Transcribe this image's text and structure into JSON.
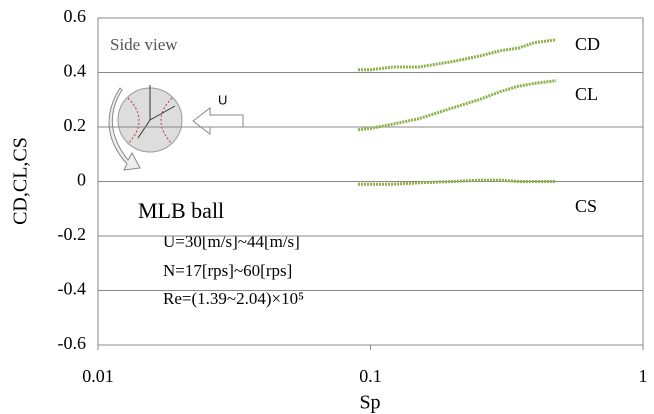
{
  "chart_data": {
    "type": "line",
    "x_label": "Sp",
    "y_label": "CD,CL,CS",
    "x": [
      0.09,
      0.1,
      0.12,
      0.15,
      0.2,
      0.25,
      0.3,
      0.35,
      0.4,
      0.48
    ],
    "series": [
      {
        "name": "CD",
        "color": "#8db04a",
        "values": [
          0.41,
          0.41,
          0.42,
          0.42,
          0.44,
          0.46,
          0.48,
          0.49,
          0.51,
          0.52
        ]
      },
      {
        "name": "CL",
        "color": "#8db04a",
        "values": [
          0.19,
          0.195,
          0.21,
          0.23,
          0.27,
          0.3,
          0.33,
          0.35,
          0.36,
          0.37
        ]
      },
      {
        "name": "CS",
        "color": "#8db04a",
        "values": [
          -0.01,
          -0.01,
          -0.01,
          -0.005,
          0,
          0.005,
          0.005,
          0,
          0,
          0
        ]
      }
    ],
    "xlim": [
      0.01,
      1
    ],
    "xticks": [
      0.01,
      0.1,
      1
    ],
    "log_x": true,
    "ylim": [
      -0.6,
      0.6
    ],
    "yticks": [
      -0.6,
      -0.4,
      -0.2,
      0,
      0.2,
      0.4,
      0.6
    ],
    "grid": true,
    "annotations": [
      "Side view",
      "U",
      "MLB ball",
      "U=30[m/s]~44[m/s]",
      "N=17[rps]~60[rps]",
      "Re=(1.39~2.04)×10⁵"
    ]
  }
}
